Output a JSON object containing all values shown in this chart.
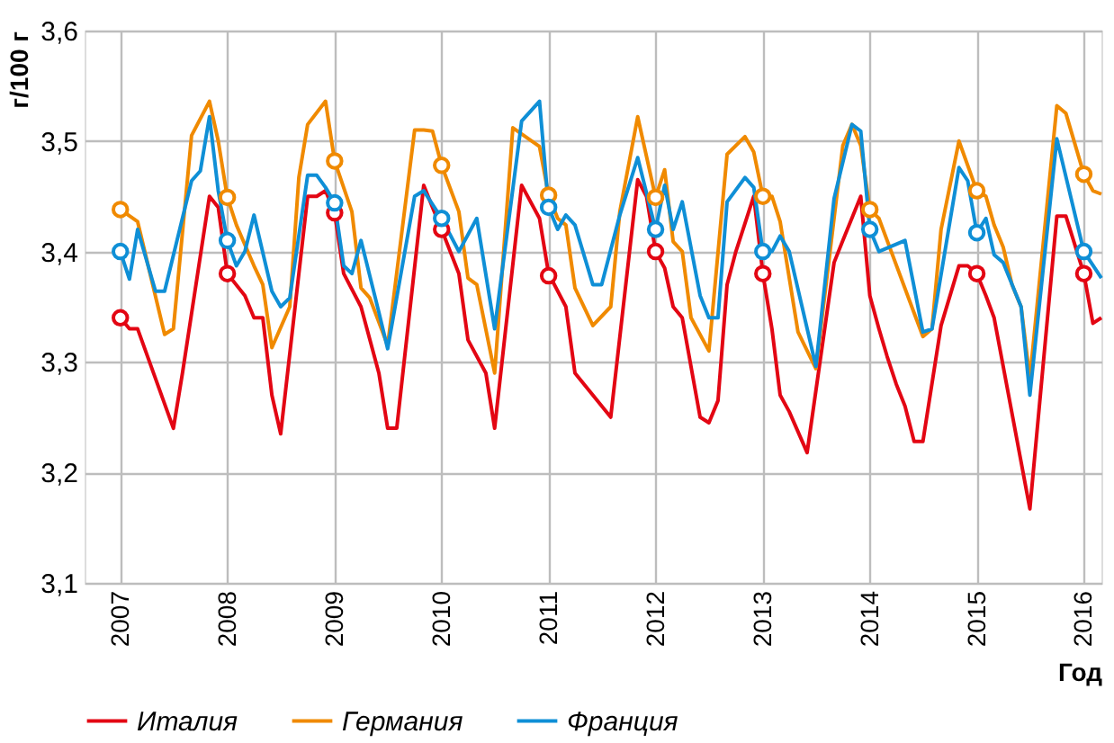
{
  "chart_data": {
    "type": "line",
    "xlabel": "Год",
    "ylabel": "г/100 г",
    "xlim": [
      "2006-09",
      "2016-03"
    ],
    "xticks": [
      "2007",
      "2008",
      "2009",
      "2010",
      "2011",
      "2012",
      "2013",
      "2014",
      "2015",
      "2016"
    ],
    "ylim": [
      3.1,
      3.6
    ],
    "yticks": [
      {
        "value": 3.1,
        "label": "3,1"
      },
      {
        "value": 3.2,
        "label": "3,2"
      },
      {
        "value": 3.3,
        "label": "3,3"
      },
      {
        "value": 3.4,
        "label": "3,4"
      },
      {
        "value": 3.5,
        "label": "3,5"
      },
      {
        "value": 3.6,
        "label": "3,6"
      }
    ],
    "grid": true,
    "legend": "bottom",
    "line_style": "solid",
    "marker": "none",
    "series": [
      {
        "name": "Италия",
        "color": "#e30613",
        "x": [
          "2007-01",
          "2007-02",
          "2007-03",
          "2007-07",
          "2007-08",
          "2007-11",
          "2007-12",
          "2008-01",
          "2008-03",
          "2008-04",
          "2008-05",
          "2008-06",
          "2008-07",
          "2008-10",
          "2008-11",
          "2008-12",
          "2009-01",
          "2009-02",
          "2009-04",
          "2009-06",
          "2009-07",
          "2009-08",
          "2009-11",
          "2009-12",
          "2010-01",
          "2010-03",
          "2010-04",
          "2010-06",
          "2010-07",
          "2010-10",
          "2010-12",
          "2011-01",
          "2011-03",
          "2011-04",
          "2011-08",
          "2011-11",
          "2011-12",
          "2012-01",
          "2012-02",
          "2012-03",
          "2012-04",
          "2012-06",
          "2012-07",
          "2012-08",
          "2012-09",
          "2012-10",
          "2012-12",
          "2013-01",
          "2013-02",
          "2013-03",
          "2013-04",
          "2013-06",
          "2013-09",
          "2013-10",
          "2013-12",
          "2014-01",
          "2014-02",
          "2014-03",
          "2014-04",
          "2014-05",
          "2014-06",
          "2014-07",
          "2014-09",
          "2014-11",
          "2014-12",
          "2015-01",
          "2015-02",
          "2015-03",
          "2015-07",
          "2015-10",
          "2015-11",
          "2016-01",
          "2016-02",
          "2016-03"
        ],
        "values": [
          3.34,
          3.33,
          3.33,
          3.24,
          3.29,
          3.45,
          3.44,
          3.38,
          3.36,
          3.34,
          3.34,
          3.27,
          3.235,
          3.45,
          3.45,
          3.455,
          3.435,
          3.38,
          3.35,
          3.29,
          3.24,
          3.24,
          3.46,
          3.44,
          3.42,
          3.38,
          3.32,
          3.29,
          3.24,
          3.46,
          3.43,
          3.38,
          3.35,
          3.29,
          3.25,
          3.465,
          3.45,
          3.4,
          3.385,
          3.35,
          3.34,
          3.25,
          3.245,
          3.265,
          3.37,
          3.4,
          3.45,
          3.38,
          3.33,
          3.27,
          3.255,
          3.218,
          3.39,
          3.41,
          3.45,
          3.36,
          3.33,
          3.305,
          3.28,
          3.26,
          3.228,
          3.228,
          3.333,
          3.387,
          3.387,
          3.38,
          3.36,
          3.34,
          3.167,
          3.432,
          3.432,
          3.38,
          3.335,
          3.34
        ]
      },
      {
        "name": "Германия",
        "color": "#f08a00",
        "x": [
          "2007-01",
          "2007-03",
          "2007-06",
          "2007-07",
          "2007-09",
          "2007-11",
          "2007-12",
          "2008-01",
          "2008-02",
          "2008-04",
          "2008-05",
          "2008-06",
          "2008-08",
          "2008-09",
          "2008-10",
          "2008-12",
          "2009-01",
          "2009-03",
          "2009-04",
          "2009-05",
          "2009-07",
          "2009-10",
          "2009-11",
          "2009-12",
          "2010-01",
          "2010-03",
          "2010-04",
          "2010-05",
          "2010-07",
          "2010-09",
          "2010-12",
          "2011-01",
          "2011-02",
          "2011-03",
          "2011-04",
          "2011-06",
          "2011-08",
          "2011-09",
          "2011-11",
          "2012-01",
          "2012-02",
          "2012-03",
          "2012-04",
          "2012-05",
          "2012-07",
          "2012-09",
          "2012-11",
          "2012-12",
          "2013-01",
          "2013-02",
          "2013-03",
          "2013-05",
          "2013-07",
          "2013-10",
          "2013-11",
          "2013-12",
          "2014-01",
          "2014-02",
          "2014-07",
          "2014-08",
          "2014-09",
          "2014-11",
          "2015-01",
          "2015-02",
          "2015-03",
          "2015-04",
          "2015-05",
          "2015-06",
          "2015-07",
          "2015-10",
          "2015-11",
          "2016-01",
          "2016-02",
          "2016-03"
        ],
        "values": [
          3.438,
          3.427,
          3.325,
          3.33,
          3.505,
          3.536,
          3.5,
          3.449,
          3.424,
          3.387,
          3.37,
          3.313,
          3.35,
          3.467,
          3.515,
          3.536,
          3.482,
          3.436,
          3.367,
          3.358,
          3.315,
          3.51,
          3.51,
          3.509,
          3.478,
          3.436,
          3.376,
          3.37,
          3.29,
          3.512,
          3.495,
          3.451,
          3.43,
          3.424,
          3.367,
          3.333,
          3.35,
          3.436,
          3.522,
          3.449,
          3.474,
          3.409,
          3.4,
          3.34,
          3.31,
          3.488,
          3.504,
          3.49,
          3.45,
          3.45,
          3.427,
          3.327,
          3.294,
          3.496,
          3.515,
          3.496,
          3.438,
          3.43,
          3.323,
          3.33,
          3.42,
          3.5,
          3.455,
          3.45,
          3.424,
          3.404,
          3.37,
          3.35,
          3.285,
          3.532,
          3.525,
          3.47,
          3.455,
          3.452
        ]
      },
      {
        "name": "Франция",
        "color": "#0f8fd6",
        "x": [
          "2007-01",
          "2007-02",
          "2007-03",
          "2007-05",
          "2007-06",
          "2007-09",
          "2007-10",
          "2007-11",
          "2007-12",
          "2008-01",
          "2008-02",
          "2008-03",
          "2008-04",
          "2008-06",
          "2008-07",
          "2008-08",
          "2008-10",
          "2008-11",
          "2008-12",
          "2009-01",
          "2009-02",
          "2009-03",
          "2009-04",
          "2009-06",
          "2009-07",
          "2009-10",
          "2009-11",
          "2010-01",
          "2010-03",
          "2010-05",
          "2010-07",
          "2010-10",
          "2010-12",
          "2011-01",
          "2011-02",
          "2011-03",
          "2011-04",
          "2011-06",
          "2011-07",
          "2011-09",
          "2011-11",
          "2012-01",
          "2012-02",
          "2012-03",
          "2012-04",
          "2012-06",
          "2012-07",
          "2012-08",
          "2012-09",
          "2012-11",
          "2012-12",
          "2013-01",
          "2013-02",
          "2013-03",
          "2013-04",
          "2013-07",
          "2013-09",
          "2013-11",
          "2013-12",
          "2014-01",
          "2014-02",
          "2014-05",
          "2014-07",
          "2014-08",
          "2014-11",
          "2014-12",
          "2015-01",
          "2015-02",
          "2015-03",
          "2015-04",
          "2015-06",
          "2015-07",
          "2015-10",
          "2016-01",
          "2016-03"
        ],
        "values": [
          3.4,
          3.375,
          3.42,
          3.364,
          3.364,
          3.464,
          3.473,
          3.522,
          3.455,
          3.41,
          3.387,
          3.4,
          3.433,
          3.364,
          3.35,
          3.358,
          3.469,
          3.469,
          3.458,
          3.444,
          3.387,
          3.38,
          3.41,
          3.345,
          3.312,
          3.45,
          3.455,
          3.43,
          3.4,
          3.43,
          3.33,
          3.518,
          3.536,
          3.44,
          3.42,
          3.433,
          3.424,
          3.37,
          3.37,
          3.433,
          3.485,
          3.42,
          3.46,
          3.42,
          3.445,
          3.36,
          3.34,
          3.34,
          3.445,
          3.467,
          3.458,
          3.4,
          3.4,
          3.414,
          3.4,
          3.296,
          3.448,
          3.515,
          3.509,
          3.42,
          3.4,
          3.41,
          3.327,
          3.33,
          3.476,
          3.464,
          3.417,
          3.43,
          3.397,
          3.39,
          3.35,
          3.27,
          3.502,
          3.4,
          3.376
        ]
      },
      {
        "color": "#e30613",
        "type": "scatter",
        "marker": "circle",
        "x": [
          "2007-01",
          "2008-01",
          "2009-01",
          "2010-01",
          "2011-01",
          "2012-01",
          "2013-01",
          "2014-01",
          "2015-01",
          "2016-01"
        ],
        "values": [
          3.34,
          3.38,
          3.435,
          3.42,
          3.378,
          3.4,
          3.38,
          null,
          3.38,
          3.38
        ]
      },
      {
        "color": "#f08a00",
        "type": "scatter",
        "marker": "circle",
        "x": [
          "2007-01",
          "2008-01",
          "2009-01",
          "2010-01",
          "2011-01",
          "2012-01",
          "2013-01",
          "2014-01",
          "2015-01",
          "2016-01"
        ],
        "values": [
          3.438,
          3.449,
          3.482,
          3.478,
          3.451,
          3.449,
          3.45,
          3.438,
          3.455,
          3.47
        ]
      },
      {
        "color": "#0f8fd6",
        "type": "scatter",
        "marker": "circle",
        "x": [
          "2007-01",
          "2008-01",
          "2009-01",
          "2010-01",
          "2011-01",
          "2012-01",
          "2013-01",
          "2014-01",
          "2015-01",
          "2016-01"
        ],
        "values": [
          3.4,
          3.41,
          3.444,
          3.43,
          3.44,
          3.42,
          3.4,
          3.42,
          3.417,
          3.4
        ]
      }
    ]
  }
}
